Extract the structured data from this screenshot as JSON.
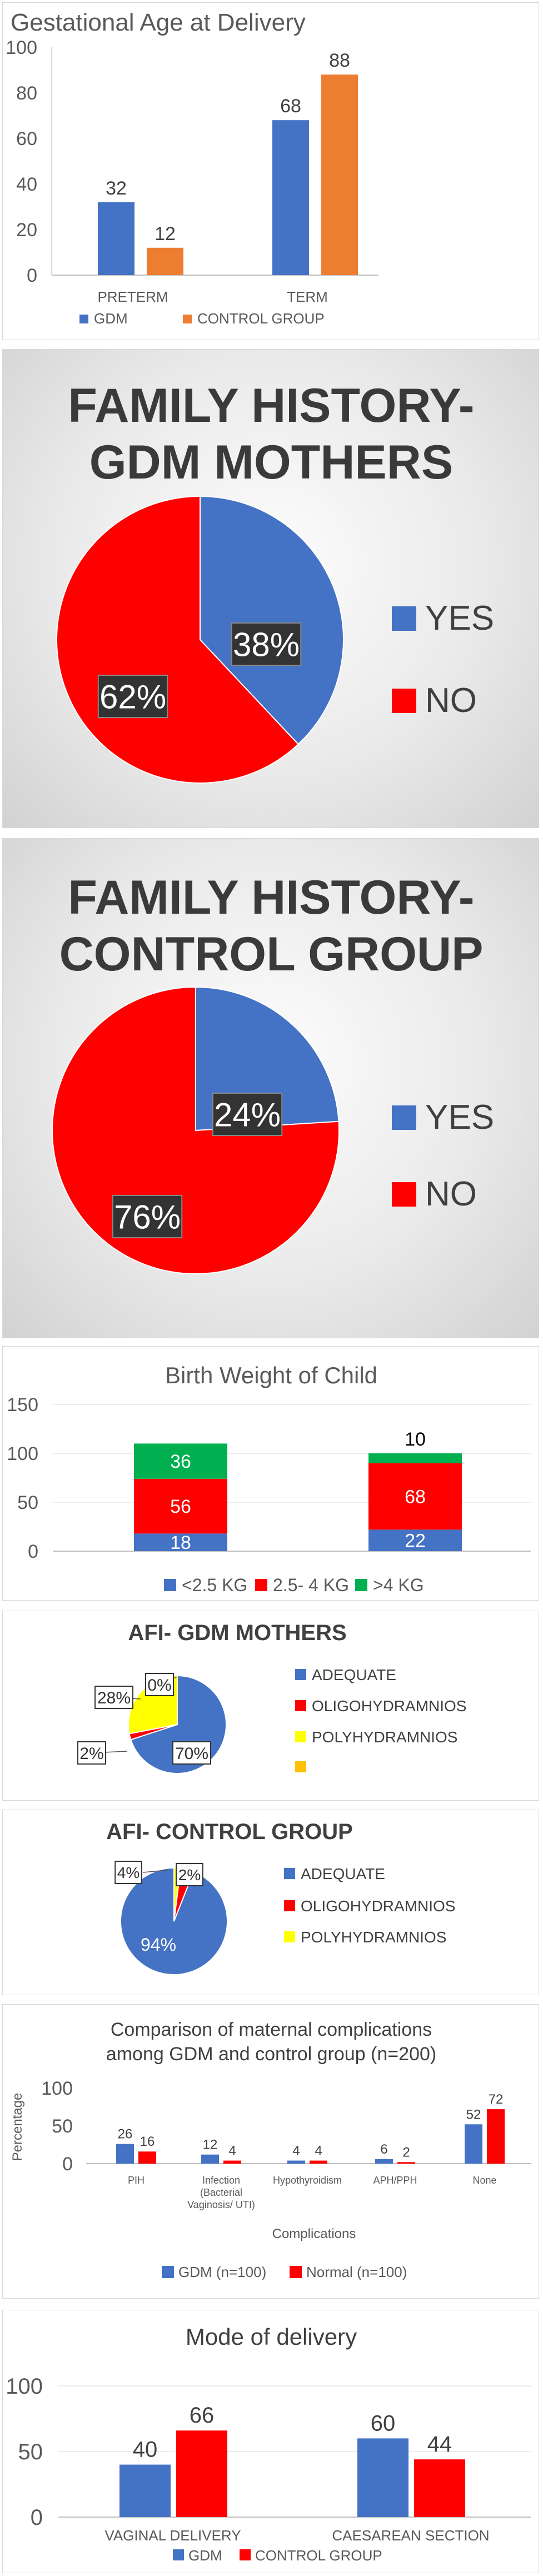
{
  "colors": {
    "gdm": "#4472c4",
    "control": "#ed7d31",
    "red": "#ff0000",
    "green": "#00b050",
    "yellow": "#ffff00",
    "gold": "#ffc000",
    "axis": "#595959"
  },
  "chart_data": [
    {
      "id": "gest",
      "type": "bar",
      "title": "Gestational Age at Delivery",
      "categories": [
        "PRETERM",
        "TERM"
      ],
      "series": [
        {
          "name": "GDM",
          "values": [
            32,
            68
          ]
        },
        {
          "name": "CONTROL GROUP",
          "values": [
            12,
            88
          ]
        }
      ],
      "ylim": [
        0,
        100
      ],
      "yticks": [
        "0",
        "20",
        "40",
        "60",
        "80",
        "100"
      ],
      "legend": "bottom"
    },
    {
      "id": "fh_gdm",
      "type": "pie",
      "title_line1": "FAMILY HISTORY-",
      "title_line2": "GDM MOTHERS",
      "slices": [
        {
          "name": "YES",
          "value": 38,
          "label": "38%"
        },
        {
          "name": "NO",
          "value": 62,
          "label": "62%"
        }
      ],
      "legend": "right"
    },
    {
      "id": "fh_ctrl",
      "type": "pie",
      "title_line1": "FAMILY HISTORY-",
      "title_line2": "CONTROL GROUP",
      "slices": [
        {
          "name": "YES",
          "value": 24,
          "label": "24%"
        },
        {
          "name": "NO",
          "value": 76,
          "label": "76%"
        }
      ],
      "legend": "right"
    },
    {
      "id": "bw",
      "type": "bar",
      "stacked": true,
      "title": "Birth Weight of Child",
      "categories": [
        "",
        ""
      ],
      "series": [
        {
          "name": "<2.5 KG",
          "values": [
            18,
            22
          ],
          "labels": [
            "18",
            "22"
          ]
        },
        {
          "name": "2.5- 4 KG",
          "values": [
            56,
            68
          ],
          "labels": [
            "56",
            "68"
          ]
        },
        {
          "name": ">4 KG",
          "values": [
            36,
            10
          ],
          "labels": [
            "36",
            "10"
          ]
        }
      ],
      "ylim": [
        0,
        150
      ],
      "yticks": [
        "0",
        "50",
        "100",
        "150"
      ],
      "legend": "bottom"
    },
    {
      "id": "afi_gdm",
      "type": "pie",
      "title": "AFI- GDM MOTHERS",
      "slices": [
        {
          "name": "ADEQUATE",
          "value": 70,
          "label": "70%"
        },
        {
          "name": "OLIGOHYDRAMNIOS",
          "value": 2,
          "label": "2%"
        },
        {
          "name": "POLYHYDRAMNIOS",
          "value": 28,
          "label": "28%"
        },
        {
          "name": "",
          "value": 0,
          "label": "0%"
        }
      ],
      "legend": "right"
    },
    {
      "id": "afi_ctrl",
      "type": "pie",
      "title": "AFI- CONTROL GROUP",
      "slices": [
        {
          "name": "ADEQUATE",
          "value": 94,
          "label": "94%"
        },
        {
          "name": "OLIGOHYDRAMNIOS",
          "value": 4,
          "label": "4%"
        },
        {
          "name": "POLYHYDRAMNIOS",
          "value": 2,
          "label": "2%"
        }
      ],
      "legend": "right"
    },
    {
      "id": "comp",
      "type": "bar",
      "title_line1": "Comparison of maternal complications",
      "title_line2": "among GDM and control group (n=200)",
      "categories": [
        "PIH",
        "Infection",
        "Hypothyroidism",
        "APH/PPH",
        "None"
      ],
      "category_sublabels": [
        "",
        "(Bacterial",
        "",
        "",
        ""
      ],
      "category_sublabels2": [
        "",
        "Vaginosis/ UTI)",
        "",
        "",
        ""
      ],
      "series": [
        {
          "name": "GDM (n=100)",
          "values": [
            26,
            12,
            4,
            6,
            52
          ]
        },
        {
          "name": "Normal (n=100)",
          "values": [
            16,
            4,
            4,
            2,
            72
          ]
        }
      ],
      "ylim": [
        0,
        100
      ],
      "yticks": [
        "0",
        "50",
        "100"
      ],
      "xlabel": "Complications",
      "ylabel": "Percentage",
      "legend": "bottom"
    },
    {
      "id": "mode",
      "type": "bar",
      "title": "Mode of delivery",
      "categories": [
        "VAGINAL DELIVERY",
        "CAESAREAN SECTION"
      ],
      "series": [
        {
          "name": "GDM",
          "values": [
            40,
            60
          ]
        },
        {
          "name": "CONTROL GROUP",
          "values": [
            66,
            44
          ]
        }
      ],
      "ylim": [
        0,
        100
      ],
      "yticks": [
        "0",
        "50",
        "100"
      ],
      "legend": "bottom"
    }
  ]
}
